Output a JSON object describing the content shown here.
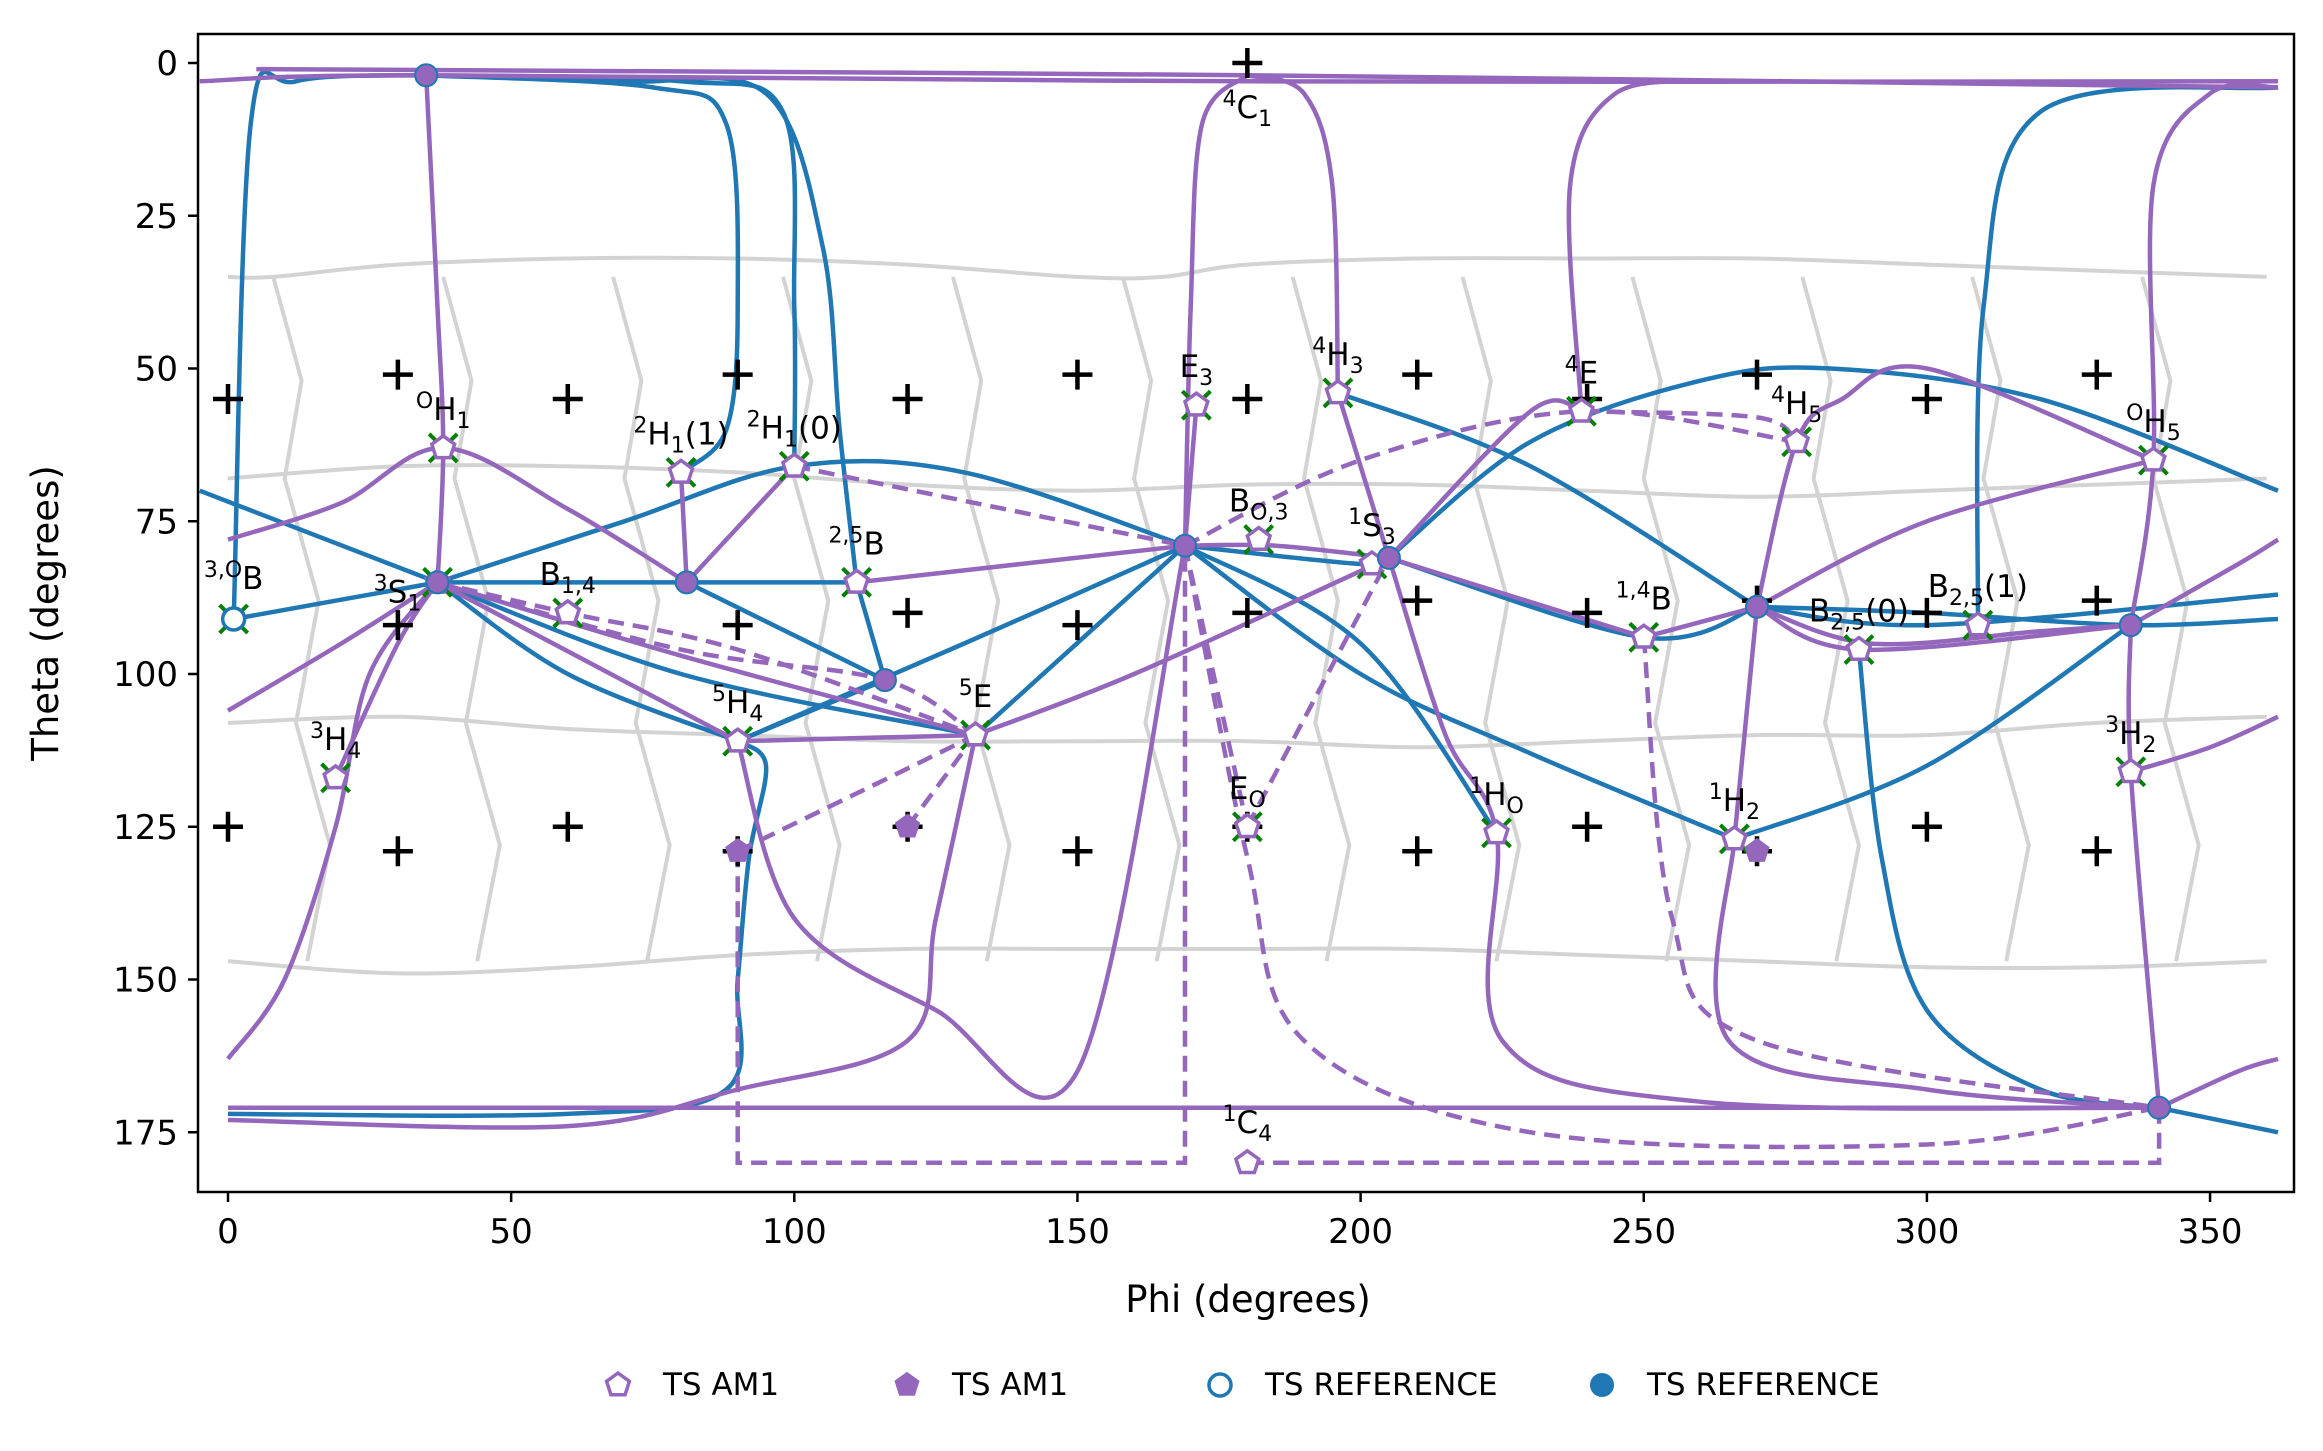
{
  "chart_data": {
    "type": "scatter",
    "title": "",
    "xlabel": "Phi (degrees)",
    "ylabel": "Theta (degrees)",
    "xlim": [
      -5,
      362
    ],
    "ylim": [
      185,
      -5
    ],
    "y_inverted": true,
    "xticks": [
      0,
      50,
      100,
      150,
      200,
      250,
      300,
      350
    ],
    "yticks": [
      0,
      25,
      50,
      75,
      100,
      125,
      150,
      175
    ],
    "colors": {
      "ts_am1": "#9467bd",
      "ts_reference": "#1f77b4",
      "grid_lines": "#d3d3d3",
      "markers": "#000000",
      "local_min": "#008000"
    },
    "legend": {
      "placement": "bottom-center",
      "entries": [
        {
          "label": "TS AM1",
          "marker": "open-pentagon",
          "color": "#9467bd"
        },
        {
          "label": "TS AM1",
          "marker": "filled-pentagon",
          "color": "#9467bd"
        },
        {
          "label": "TS REFERENCE",
          "marker": "open-circle",
          "color": "#1f77b4"
        },
        {
          "label": "TS REFERENCE",
          "marker": "filled-circle",
          "color": "#1f77b4"
        }
      ]
    },
    "canonical_conformers": [
      {
        "label": "4C1",
        "base": "C",
        "sup": "4",
        "sub": "1",
        "x": 180,
        "y": 0
      },
      {
        "label": "1C4",
        "base": "C",
        "sup": "1",
        "sub": "4",
        "x": 180,
        "y": 180
      },
      {
        "label": "OH1",
        "base": "H",
        "sup": "O",
        "sub": "1",
        "x": 38,
        "y": 63
      },
      {
        "label": "2H1(1)",
        "base": "H",
        "sup": "2",
        "sub": "1",
        "suffix": "(1)",
        "x": 80,
        "y": 67
      },
      {
        "label": "2H1(0)",
        "base": "H",
        "sup": "2",
        "sub": "1",
        "suffix": "(0)",
        "x": 100,
        "y": 66
      },
      {
        "label": "E3",
        "base": "E",
        "sup": "",
        "sub": "3",
        "x": 171,
        "y": 56
      },
      {
        "label": "4H3",
        "base": "H",
        "sup": "4",
        "sub": "3",
        "x": 196,
        "y": 54
      },
      {
        "label": "4E",
        "base": "E",
        "sup": "4",
        "sub": "",
        "x": 239,
        "y": 57
      },
      {
        "label": "4H5",
        "base": "H",
        "sup": "4",
        "sub": "5",
        "x": 277,
        "y": 62
      },
      {
        "label": "OH5",
        "base": "H",
        "sup": "O",
        "sub": "5",
        "x": 340,
        "y": 65
      },
      {
        "label": "3,OB",
        "base": "B",
        "sup": "3,O",
        "sub": "",
        "x": 1,
        "y": 91
      },
      {
        "label": "3S1",
        "base": "S",
        "sup": "3",
        "sub": "1",
        "x": 37,
        "y": 85
      },
      {
        "label": "B1,4",
        "base": "B",
        "sup": "",
        "sub": "1,4",
        "x": 60,
        "y": 90
      },
      {
        "label": "2,5B",
        "base": "B",
        "sup": "2,5",
        "sub": "",
        "x": 111,
        "y": 85
      },
      {
        "label": "BO,3",
        "base": "B",
        "sup": "",
        "sub": "O,3",
        "x": 182,
        "y": 78
      },
      {
        "label": "1S3",
        "base": "S",
        "sup": "1",
        "sub": "3",
        "x": 202,
        "y": 82
      },
      {
        "label": "1,4B",
        "base": "B",
        "sup": "1,4",
        "sub": "",
        "x": 250,
        "y": 94
      },
      {
        "label": "B2,5(0)",
        "base": "B",
        "sup": "",
        "sub": "2,5",
        "suffix": "(0)",
        "x": 288,
        "y": 96
      },
      {
        "label": "B2,5(1)",
        "base": "B",
        "sup": "",
        "sub": "2,5",
        "suffix": "(1)",
        "x": 309,
        "y": 92
      },
      {
        "label": "5H4",
        "base": "H",
        "sup": "5",
        "sub": "4",
        "x": 90,
        "y": 111
      },
      {
        "label": "5E",
        "base": "E",
        "sup": "5",
        "sub": "",
        "x": 132,
        "y": 110
      },
      {
        "label": "3H4",
        "base": "H",
        "sup": "3",
        "sub": "4",
        "x": 19,
        "y": 117
      },
      {
        "label": "EO",
        "base": "E",
        "sup": "",
        "sub": "O",
        "x": 180,
        "y": 125
      },
      {
        "label": "1HO",
        "base": "H",
        "sup": "1",
        "sub": "O",
        "x": 224,
        "y": 126
      },
      {
        "label": "1H2",
        "base": "H",
        "sup": "1",
        "sub": "2",
        "x": 266,
        "y": 127
      },
      {
        "label": "3H2",
        "base": "H",
        "sup": "3",
        "sub": "2",
        "x": 336,
        "y": 116
      }
    ],
    "reference_plus_markers": [
      {
        "x": 180,
        "y": 0
      },
      {
        "x": 0,
        "y": 55
      },
      {
        "x": 30,
        "y": 51
      },
      {
        "x": 60,
        "y": 55
      },
      {
        "x": 90,
        "y": 51
      },
      {
        "x": 120,
        "y": 55
      },
      {
        "x": 150,
        "y": 51
      },
      {
        "x": 180,
        "y": 55
      },
      {
        "x": 210,
        "y": 51
      },
      {
        "x": 240,
        "y": 55
      },
      {
        "x": 270,
        "y": 51
      },
      {
        "x": 300,
        "y": 55
      },
      {
        "x": 330,
        "y": 51
      },
      {
        "x": 30,
        "y": 92
      },
      {
        "x": 90,
        "y": 92
      },
      {
        "x": 120,
        "y": 90
      },
      {
        "x": 150,
        "y": 92
      },
      {
        "x": 180,
        "y": 90
      },
      {
        "x": 210,
        "y": 88
      },
      {
        "x": 240,
        "y": 90
      },
      {
        "x": 270,
        "y": 88
      },
      {
        "x": 300,
        "y": 90
      },
      {
        "x": 330,
        "y": 88
      },
      {
        "x": 0,
        "y": 125
      },
      {
        "x": 30,
        "y": 129
      },
      {
        "x": 60,
        "y": 125
      },
      {
        "x": 90,
        "y": 129
      },
      {
        "x": 120,
        "y": 125
      },
      {
        "x": 150,
        "y": 129
      },
      {
        "x": 180,
        "y": 125
      },
      {
        "x": 210,
        "y": 129
      },
      {
        "x": 240,
        "y": 125
      },
      {
        "x": 270,
        "y": 129
      },
      {
        "x": 300,
        "y": 125
      },
      {
        "x": 330,
        "y": 129
      }
    ],
    "ts_am1_open": [
      {
        "x": 60,
        "y": 90
      },
      {
        "x": 180,
        "y": 125
      },
      {
        "x": 180,
        "y": 180
      }
    ],
    "ts_am1_filled": [
      {
        "x": 90,
        "y": 129
      },
      {
        "x": 120,
        "y": 125
      },
      {
        "x": 270,
        "y": 129
      }
    ],
    "ts_reference_filled": [
      {
        "x": 35,
        "y": 2
      },
      {
        "x": 37,
        "y": 85
      },
      {
        "x": 81,
        "y": 85
      },
      {
        "x": 116,
        "y": 101
      },
      {
        "x": 169,
        "y": 79
      },
      {
        "x": 205,
        "y": 81
      },
      {
        "x": 270,
        "y": 89
      },
      {
        "x": 336,
        "y": 92
      },
      {
        "x": 341,
        "y": 171
      }
    ],
    "ts_reference_open": [
      {
        "x": 1,
        "y": 91
      }
    ]
  }
}
